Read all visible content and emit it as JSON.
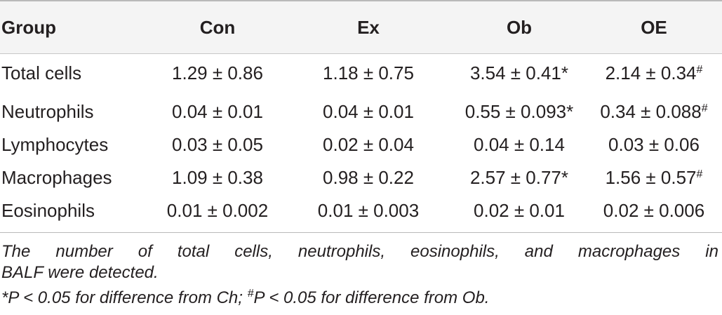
{
  "table": {
    "columns": [
      "Group",
      "Con",
      "Ex",
      "Ob",
      "OE"
    ],
    "rows": [
      {
        "group": "Total cells",
        "con": "1.29 ± 0.86",
        "ex": "1.18 ± 0.75",
        "ob": "3.54 ± 0.41*",
        "oe": "2.14 ± 0.34",
        "oe_mark": "#"
      },
      {
        "group": "Neutrophils",
        "con": "0.04 ± 0.01",
        "ex": "0.04 ± 0.01",
        "ob": "0.55 ± 0.093*",
        "oe": "0.34 ± 0.088",
        "oe_mark": "#"
      },
      {
        "group": "Lymphocytes",
        "con": "0.03 ± 0.05",
        "ex": "0.02 ± 0.04",
        "ob": "0.04 ± 0.14",
        "oe": "0.03 ± 0.06",
        "oe_mark": ""
      },
      {
        "group": "Macrophages",
        "con": "1.09 ± 0.38",
        "ex": "0.98 ± 0.22",
        "ob": "2.57 ± 0.77*",
        "oe": "1.56 ± 0.57",
        "oe_mark": "#"
      },
      {
        "group": "Eosinophils",
        "con": "0.01 ± 0.002",
        "ex": "0.01 ± 0.003",
        "ob": "0.02 ± 0.01",
        "oe": "0.02 ± 0.006",
        "oe_mark": ""
      }
    ]
  },
  "notes": {
    "line1": "The number of total cells, neutrophils, eosinophils, and macrophages in",
    "line2": "BALF were detected.",
    "line3_a": "*P < 0.05 for difference from Ch; ",
    "line3_mark": "#",
    "line3_b": "P < 0.05 for difference from Ob."
  },
  "colors": {
    "text": "#231f20",
    "header_background": "#f4f4f4",
    "rule": "#b9b9b9"
  }
}
